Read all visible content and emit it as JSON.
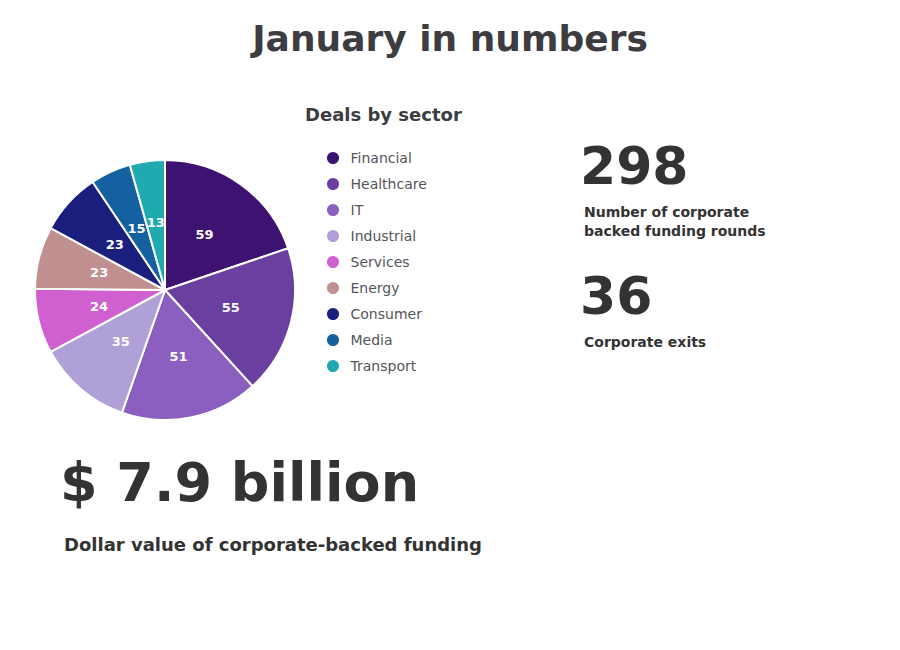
{
  "chart_data": {
    "type": "pie",
    "title": "January in numbers",
    "subtitle": "Deals by sector",
    "categories": [
      "Financial",
      "Healthcare",
      "IT",
      "Industrial",
      "Services",
      "Energy",
      "Consumer",
      "Media",
      "Transport"
    ],
    "values": [
      59,
      55,
      51,
      35,
      24,
      23,
      23,
      15,
      13
    ],
    "colors": [
      "#3D1270",
      "#6B3FA0",
      "#8B5FC0",
      "#B0A0D8",
      "#D060D0",
      "#C09090",
      "#1A1F7E",
      "#1560A0",
      "#1FAAB0"
    ],
    "data_labels": true,
    "legend": "right",
    "annotations": [
      "298",
      "Number of corporate",
      "backed funding rounds",
      "36",
      "Corporate exits",
      "$ 7.9 billion",
      "Dollar value of corporate-backed funding"
    ]
  }
}
